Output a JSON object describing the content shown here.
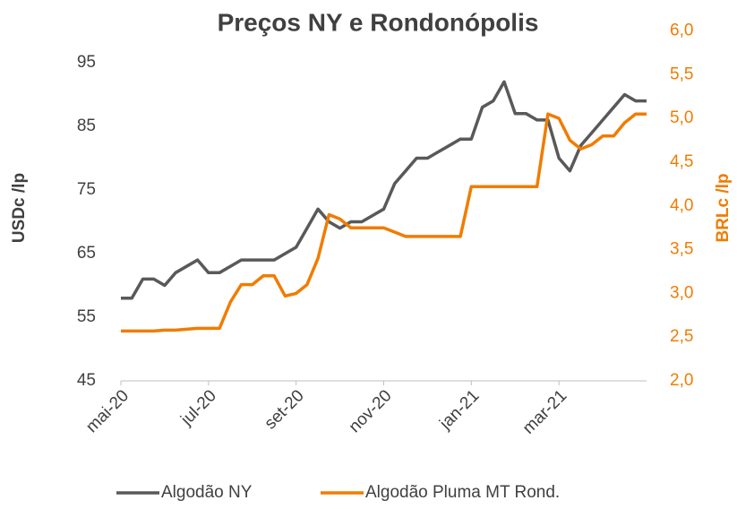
{
  "chart_data": {
    "type": "line",
    "title": "Preços NY  e Rondonópolis",
    "y_label": "USDc /lp",
    "y2_label": "BRLc /lp",
    "categories": [
      "mai-20",
      null,
      null,
      null,
      null,
      null,
      null,
      null,
      "jul-20",
      null,
      null,
      null,
      null,
      null,
      null,
      null,
      "set-20",
      null,
      null,
      null,
      null,
      null,
      null,
      null,
      "nov-20",
      null,
      null,
      null,
      null,
      null,
      null,
      null,
      "jan-21",
      null,
      null,
      null,
      null,
      null,
      null,
      null,
      "mar-21",
      null,
      null,
      null,
      null,
      null,
      null,
      null,
      null
    ],
    "series": [
      {
        "name": "Algodão NY",
        "color": "#595959",
        "axis": "y",
        "values": [
          58,
          58,
          61,
          61,
          60,
          62,
          63,
          64,
          62,
          62,
          63,
          64,
          64,
          64,
          64,
          65,
          66,
          69,
          72,
          70,
          69,
          70,
          70,
          71,
          72,
          76,
          78,
          80,
          80,
          81,
          82,
          83,
          83,
          88,
          89,
          92,
          87,
          87,
          86,
          86,
          80,
          78,
          82,
          84,
          86,
          88,
          90,
          89,
          89
        ]
      },
      {
        "name": "Algodão Pluma MT Rond.",
        "color": "#f07c00",
        "axis": "y2",
        "values": [
          2.57,
          2.57,
          2.57,
          2.57,
          2.58,
          2.58,
          2.59,
          2.6,
          2.6,
          2.6,
          2.9,
          3.1,
          3.1,
          3.2,
          3.2,
          2.97,
          3.0,
          3.1,
          3.4,
          3.9,
          3.85,
          3.75,
          3.75,
          3.75,
          3.75,
          3.7,
          3.65,
          3.65,
          3.65,
          3.65,
          3.65,
          3.65,
          4.22,
          4.22,
          4.22,
          4.22,
          4.22,
          4.22,
          4.22,
          5.05,
          5.0,
          4.75,
          4.65,
          4.7,
          4.8,
          4.8,
          4.95,
          5.05,
          5.05
        ]
      }
    ],
    "ylim": [
      45,
      100
    ],
    "yticks": [
      45,
      55,
      65,
      75,
      85,
      95
    ],
    "y2lim": [
      2,
      6
    ],
    "y2ticks": [
      {
        "value": 2,
        "label": "2,0"
      },
      {
        "value": 2.5,
        "label": "2,5"
      },
      {
        "value": 3,
        "label": "3,0"
      },
      {
        "value": 3.5,
        "label": "3,5"
      },
      {
        "value": 4,
        "label": "4,0"
      },
      {
        "value": 4.5,
        "label": "4,5"
      },
      {
        "value": 5,
        "label": "5,0"
      },
      {
        "value": 5.5,
        "label": "5,5"
      },
      {
        "value": 6,
        "label": "6,0"
      }
    ],
    "y2_color": "#f07c00",
    "legend": "bottom",
    "grid": false
  }
}
